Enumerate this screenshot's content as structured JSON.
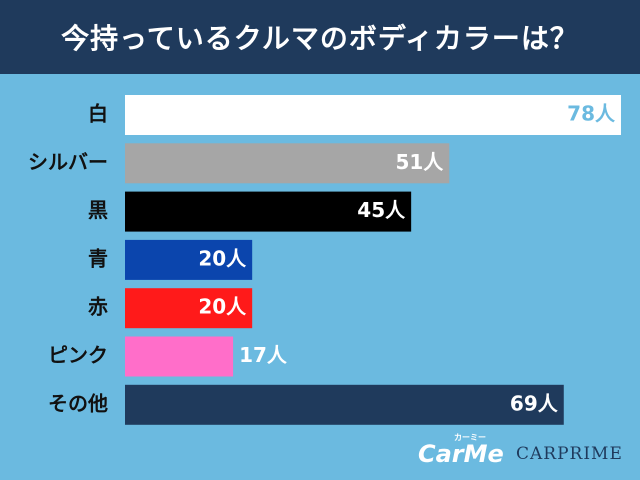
{
  "chart_data": {
    "type": "bar",
    "orientation": "horizontal",
    "title": "今持っているクルマのボディカラーは？",
    "categories": [
      "白",
      "シルバー",
      "黒",
      "青",
      "赤",
      "ピンク",
      "その他"
    ],
    "values": [
      78,
      51,
      45,
      20,
      20,
      17,
      69
    ],
    "value_suffix": "人",
    "xlim": [
      0,
      78
    ],
    "colors": [
      "#ffffff",
      "#a6a6a6",
      "#000000",
      "#0b45ad",
      "#ff1a1a",
      "#ff6ec9",
      "#1f3a5c"
    ],
    "label_colors": [
      "#6bbae0",
      "#ffffff",
      "#ffffff",
      "#ffffff",
      "#ffffff",
      "#ffffff",
      "#ffffff"
    ]
  },
  "logos": {
    "carme": "CarMe",
    "carme_kana": "カーミー",
    "carprime": "CARPRIME"
  }
}
